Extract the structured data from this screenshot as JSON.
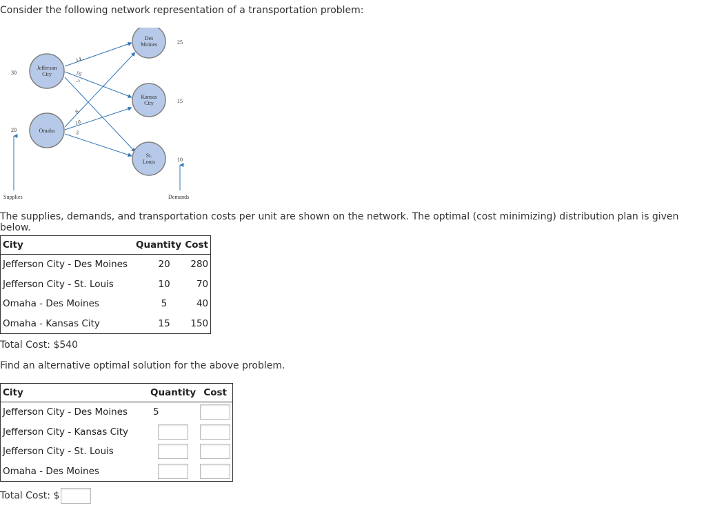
{
  "intro": "Consider the following network representation of a transportation problem:",
  "network": {
    "supplies_label": "Supplies",
    "demands_label": "Demands",
    "sources": [
      {
        "name_line1": "Jefferson",
        "name_line2": "City",
        "supply": "30"
      },
      {
        "name_line1": "Omaha",
        "name_line2": "",
        "supply": "20"
      }
    ],
    "destinations": [
      {
        "name_line1": "Des",
        "name_line2": "Moines",
        "demand": "25"
      },
      {
        "name_line1": "Kansas",
        "name_line2": "City",
        "demand": "15"
      },
      {
        "name_line1": "St.",
        "name_line2": "Louis",
        "demand": "10"
      }
    ],
    "arc_costs": [
      "14",
      "16",
      "7",
      "8",
      "10",
      "5"
    ],
    "colors": {
      "node_fill": "#b7c9e8",
      "node_stroke": "#7f7f7f",
      "arc": "#2e75b6"
    }
  },
  "description": "The supplies, demands, and transportation costs per unit are shown on the network. The optimal (cost minimizing) distribution plan is given below.",
  "plan_table": {
    "headers": {
      "city": "City",
      "quantity": "Quantity",
      "cost": "Cost"
    },
    "rows": [
      {
        "city": "Jefferson City - Des Moines",
        "quantity": "20",
        "cost": "280"
      },
      {
        "city": "Jefferson City - St. Louis",
        "quantity": "10",
        "cost": "70"
      },
      {
        "city": "Omaha - Des Moines",
        "quantity": "5",
        "cost": "40"
      },
      {
        "city": "Omaha - Kansas City",
        "quantity": "15",
        "cost": "150"
      }
    ]
  },
  "total_cost_text": "Total Cost: $540",
  "prompt": "Find an alternative optimal solution for the above problem.",
  "answer_table": {
    "headers": {
      "city": "City",
      "quantity": "Quantity",
      "cost": "Cost"
    },
    "rows": [
      {
        "city": "Jefferson City - Des Moines",
        "quantity": "5"
      },
      {
        "city": "Jefferson City - Kansas City",
        "quantity": ""
      },
      {
        "city": "Jefferson City - St. Louis",
        "quantity": ""
      },
      {
        "city": "Omaha - Des Moines",
        "quantity": ""
      }
    ]
  },
  "total_cost_label": "Total Cost: $"
}
